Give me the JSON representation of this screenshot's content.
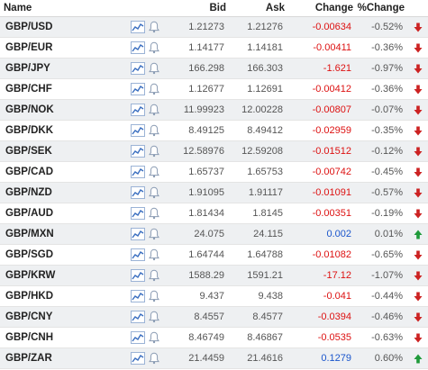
{
  "headers": {
    "name": "Name",
    "bid": "Bid",
    "ask": "Ask",
    "change": "Change",
    "pct": "%Change"
  },
  "icons": {
    "chart": "line-chart-icon",
    "alert": "bell-icon",
    "down": "arrow-down-icon",
    "up": "arrow-up-icon"
  },
  "colors": {
    "negative": "#dd1111",
    "positive": "#1a55cc",
    "arrow_down": "#cc2222",
    "arrow_up": "#1f9a3a",
    "icon_blue": "#3b6fc0",
    "row_alt": "#eef0f2"
  },
  "rows": [
    {
      "name": "GBP/USD",
      "bid": "1.21273",
      "ask": "1.21276",
      "change": "-0.00634",
      "pct": "-0.52%",
      "dir": "down"
    },
    {
      "name": "GBP/EUR",
      "bid": "1.14177",
      "ask": "1.14181",
      "change": "-0.00411",
      "pct": "-0.36%",
      "dir": "down"
    },
    {
      "name": "GBP/JPY",
      "bid": "166.298",
      "ask": "166.303",
      "change": "-1.621",
      "pct": "-0.97%",
      "dir": "down"
    },
    {
      "name": "GBP/CHF",
      "bid": "1.12677",
      "ask": "1.12691",
      "change": "-0.00412",
      "pct": "-0.36%",
      "dir": "down"
    },
    {
      "name": "GBP/NOK",
      "bid": "11.99923",
      "ask": "12.00228",
      "change": "-0.00807",
      "pct": "-0.07%",
      "dir": "down"
    },
    {
      "name": "GBP/DKK",
      "bid": "8.49125",
      "ask": "8.49412",
      "change": "-0.02959",
      "pct": "-0.35%",
      "dir": "down"
    },
    {
      "name": "GBP/SEK",
      "bid": "12.58976",
      "ask": "12.59208",
      "change": "-0.01512",
      "pct": "-0.12%",
      "dir": "down"
    },
    {
      "name": "GBP/CAD",
      "bid": "1.65737",
      "ask": "1.65753",
      "change": "-0.00742",
      "pct": "-0.45%",
      "dir": "down"
    },
    {
      "name": "GBP/NZD",
      "bid": "1.91095",
      "ask": "1.91117",
      "change": "-0.01091",
      "pct": "-0.57%",
      "dir": "down"
    },
    {
      "name": "GBP/AUD",
      "bid": "1.81434",
      "ask": "1.8145",
      "change": "-0.00351",
      "pct": "-0.19%",
      "dir": "down"
    },
    {
      "name": "GBP/MXN",
      "bid": "24.075",
      "ask": "24.115",
      "change": "0.002",
      "pct": "0.01%",
      "dir": "up"
    },
    {
      "name": "GBP/SGD",
      "bid": "1.64744",
      "ask": "1.64788",
      "change": "-0.01082",
      "pct": "-0.65%",
      "dir": "down"
    },
    {
      "name": "GBP/KRW",
      "bid": "1588.29",
      "ask": "1591.21",
      "change": "-17.12",
      "pct": "-1.07%",
      "dir": "down"
    },
    {
      "name": "GBP/HKD",
      "bid": "9.437",
      "ask": "9.438",
      "change": "-0.041",
      "pct": "-0.44%",
      "dir": "down"
    },
    {
      "name": "GBP/CNY",
      "bid": "8.4557",
      "ask": "8.4577",
      "change": "-0.0394",
      "pct": "-0.46%",
      "dir": "down"
    },
    {
      "name": "GBP/CNH",
      "bid": "8.46749",
      "ask": "8.46867",
      "change": "-0.0535",
      "pct": "-0.63%",
      "dir": "down"
    },
    {
      "name": "GBP/ZAR",
      "bid": "21.4459",
      "ask": "21.4616",
      "change": "0.1279",
      "pct": "0.60%",
      "dir": "up"
    }
  ]
}
